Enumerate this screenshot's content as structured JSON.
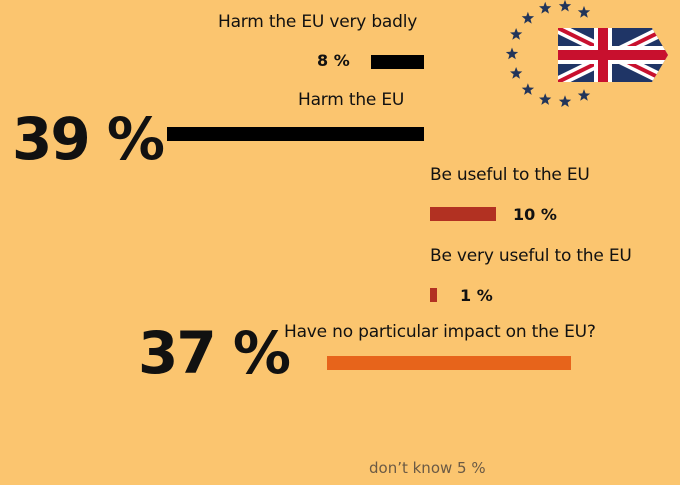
{
  "chart_data": {
    "type": "bar",
    "categories": [
      "Harm the EU very badly",
      "Harm the EU",
      "Be useful to the EU",
      "Be very useful to the EU",
      "Have no particular impact on the EU?"
    ],
    "values": [
      8,
      39,
      10,
      1,
      37
    ],
    "value_labels": [
      "8 %",
      "39 %",
      "10 %",
      "1 %",
      "37 %"
    ],
    "colors": [
      "#000000",
      "#000000",
      "#b23122",
      "#b23122",
      "#e7641b"
    ],
    "dont_know": "don’t know 5 %",
    "ylim": [
      0,
      39
    ]
  }
}
